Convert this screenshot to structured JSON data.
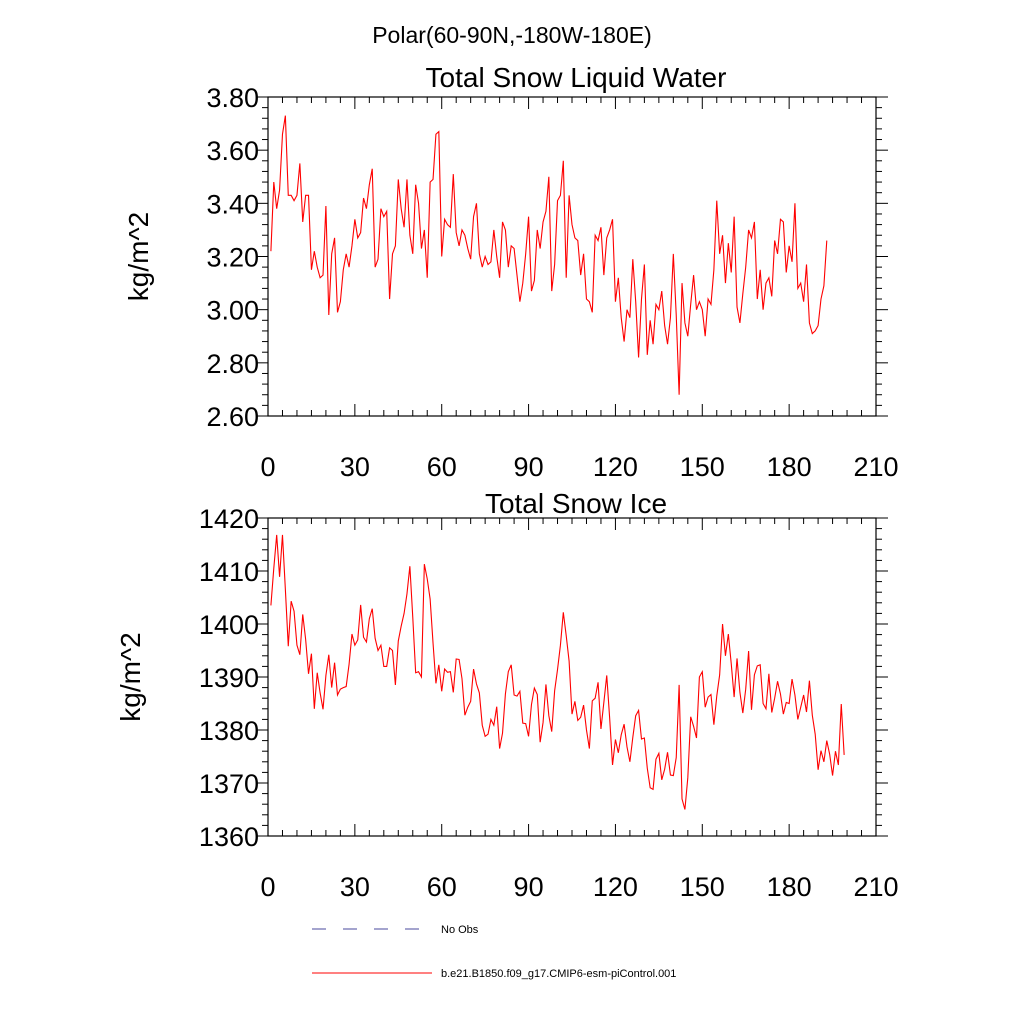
{
  "suptitle": "Polar(60-90N,-180W-180E)",
  "colors": {
    "model": "#ff0000",
    "obs": "#4a4a9c",
    "axis": "#000000"
  },
  "legend": {
    "entries": [
      {
        "label": "No Obs",
        "style": "dashed",
        "color": "#4a4a9c"
      },
      {
        "label": "b.e21.B1850.f09_g17.CMIP6-esm-piControl.001",
        "style": "solid",
        "color": "#ff0000"
      }
    ]
  },
  "chart_data": [
    {
      "type": "line",
      "title": "Total Snow Liquid Water",
      "xlabel": "",
      "ylabel": "kg/m^2",
      "xlim": [
        0,
        210
      ],
      "ylim": [
        2.6,
        3.8
      ],
      "xticks": [
        0,
        30,
        60,
        90,
        120,
        150,
        180,
        210
      ],
      "xtick_labels": [
        "0",
        "30",
        "60",
        "90",
        "120",
        "150",
        "180",
        "210"
      ],
      "yticks": [
        2.6,
        2.8,
        3.0,
        3.2,
        3.4,
        3.6,
        3.8
      ],
      "ytick_labels": [
        "2.60",
        "2.80",
        "3.00",
        "3.20",
        "3.40",
        "3.60",
        "3.80"
      ],
      "grid": false,
      "series": [
        {
          "name": "b.e21.B1850.f09_g17.CMIP6-esm-piControl.001",
          "x_start": 1,
          "values": [
            3.22,
            3.48,
            3.38,
            3.45,
            3.66,
            3.73,
            3.43,
            3.43,
            3.41,
            3.43,
            3.55,
            3.33,
            3.43,
            3.43,
            3.15,
            3.22,
            3.16,
            3.12,
            3.13,
            3.39,
            2.98,
            3.21,
            3.27,
            2.99,
            3.03,
            3.15,
            3.21,
            3.16,
            3.24,
            3.34,
            3.27,
            3.29,
            3.42,
            3.38,
            3.47,
            3.53,
            3.16,
            3.19,
            3.38,
            3.35,
            3.37,
            3.04,
            3.21,
            3.24,
            3.49,
            3.38,
            3.31,
            3.49,
            3.28,
            3.21,
            3.47,
            3.4,
            3.23,
            3.3,
            3.12,
            3.48,
            3.49,
            3.66,
            3.67,
            3.2,
            3.34,
            3.32,
            3.31,
            3.51,
            3.29,
            3.24,
            3.3,
            3.28,
            3.23,
            3.19,
            3.35,
            3.4,
            3.21,
            3.16,
            3.2,
            3.17,
            3.18,
            3.3,
            3.2,
            3.12,
            3.33,
            3.3,
            3.16,
            3.24,
            3.23,
            3.13,
            3.03,
            3.1,
            3.21,
            3.35,
            3.07,
            3.11,
            3.3,
            3.23,
            3.33,
            3.37,
            3.5,
            3.07,
            3.17,
            3.41,
            3.43,
            3.56,
            3.12,
            3.43,
            3.32,
            3.27,
            3.26,
            3.13,
            3.21,
            3.04,
            3.03,
            2.99,
            3.28,
            3.26,
            3.31,
            3.13,
            3.27,
            3.3,
            3.34,
            3.03,
            3.12,
            2.97,
            2.88,
            3.0,
            2.97,
            3.19,
            3.03,
            2.82,
            3.04,
            3.17,
            2.83,
            2.96,
            2.87,
            3.02,
            3.0,
            3.07,
            2.94,
            2.87,
            2.97,
            3.21,
            2.98,
            2.68,
            3.1,
            2.95,
            2.9,
            3.02,
            3.13,
            3.0,
            3.03,
            3.0,
            2.9,
            3.04,
            3.02,
            3.15,
            3.41,
            3.21,
            3.28,
            3.1,
            3.25,
            3.14,
            3.35,
            3.01,
            2.95,
            3.06,
            3.16,
            3.3,
            3.27,
            3.33,
            3.04,
            3.15,
            3.0,
            3.1,
            3.12,
            3.05,
            3.26,
            3.21,
            3.34,
            3.33,
            3.14,
            3.24,
            3.18,
            3.4,
            3.08,
            3.1,
            3.03,
            3.17,
            2.95,
            2.91,
            2.92,
            2.94,
            3.04,
            3.09,
            3.26
          ]
        }
      ]
    },
    {
      "type": "line",
      "title": "Total Snow Ice",
      "xlabel": "",
      "ylabel": "kg/m^2",
      "xlim": [
        0,
        210
      ],
      "ylim": [
        1360,
        1420
      ],
      "xticks": [
        0,
        30,
        60,
        90,
        120,
        150,
        180,
        210
      ],
      "xtick_labels": [
        "0",
        "30",
        "60",
        "90",
        "120",
        "150",
        "180",
        "210"
      ],
      "yticks": [
        1360,
        1370,
        1380,
        1390,
        1400,
        1410,
        1420
      ],
      "ytick_labels": [
        "1360",
        "1370",
        "1380",
        "1390",
        "1400",
        "1410",
        "1420"
      ],
      "grid": false,
      "series": [
        {
          "name": "b.e21.B1850.f09_g17.CMIP6-esm-piControl.001",
          "x_start": 1,
          "values": [
            1403.5,
            1410.5,
            1416.8,
            1408.9,
            1416.8,
            1406.5,
            1395.8,
            1404.3,
            1402.4,
            1396.0,
            1394.2,
            1401.8,
            1397.1,
            1390.6,
            1394.4,
            1384.0,
            1390.8,
            1387.0,
            1383.9,
            1390.3,
            1394.2,
            1388.0,
            1392.7,
            1386.6,
            1387.7,
            1388.0,
            1388.2,
            1392.4,
            1398.1,
            1396.0,
            1397.0,
            1403.6,
            1397.5,
            1396.6,
            1401.0,
            1402.9,
            1397.3,
            1395.0,
            1396.0,
            1392.0,
            1392.0,
            1395.5,
            1395.0,
            1388.5,
            1396.8,
            1399.6,
            1402.0,
            1405.7,
            1410.9,
            1401.3,
            1390.8,
            1391.0,
            1390.0,
            1411.3,
            1408.5,
            1404.7,
            1396.4,
            1388.8,
            1392.3,
            1387.3,
            1391.5,
            1390.9,
            1391.0,
            1387.1,
            1393.4,
            1393.3,
            1389.7,
            1382.8,
            1384.3,
            1385.4,
            1391.5,
            1388.7,
            1387.0,
            1380.9,
            1378.8,
            1379.2,
            1382.0,
            1380.9,
            1384.4,
            1376.5,
            1379.4,
            1386.8,
            1391.0,
            1392.3,
            1386.6,
            1386.4,
            1387.3,
            1381.3,
            1381.2,
            1378.8,
            1384.8,
            1387.9,
            1386.7,
            1377.7,
            1381.4,
            1388.6,
            1382.7,
            1379.7,
            1387.4,
            1391.4,
            1396.0,
            1402.2,
            1397.8,
            1393.0,
            1383.0,
            1385.4,
            1381.8,
            1382.4,
            1384.7,
            1380.0,
            1376.5,
            1385.5,
            1386.0,
            1389.0,
            1380.2,
            1385.2,
            1390.3,
            1382.3,
            1373.4,
            1378.2,
            1375.7,
            1379.1,
            1381.1,
            1376.8,
            1374.0,
            1378.6,
            1382.7,
            1383.7,
            1378.3,
            1378.5,
            1372.8,
            1369.1,
            1368.8,
            1374.5,
            1375.6,
            1370.6,
            1372.6,
            1375.8,
            1371.5,
            1371.4,
            1374.8,
            1388.5,
            1367.0,
            1365.0,
            1371.0,
            1382.5,
            1380.7,
            1378.5,
            1390.0,
            1391.0,
            1384.3,
            1386.2,
            1386.7,
            1381.0,
            1386.4,
            1390.4,
            1400.0,
            1394.0,
            1398.1,
            1392.5,
            1386.2,
            1393.5,
            1387.1,
            1383.2,
            1387.7,
            1394.9,
            1383.8,
            1390.4,
            1392.1,
            1392.3,
            1385.0,
            1384.0,
            1390.6,
            1383.3,
            1386.0,
            1389.2,
            1386.8,
            1383.0,
            1385.2,
            1385.0,
            1389.6,
            1386.6,
            1382.0,
            1384.3,
            1386.6,
            1383.4,
            1389.3,
            1382.8,
            1379.2,
            1372.5,
            1376.1,
            1374.0,
            1378.0,
            1375.4,
            1371.4,
            1376.0,
            1373.4,
            1384.9,
            1375.3
          ]
        }
      ]
    }
  ]
}
